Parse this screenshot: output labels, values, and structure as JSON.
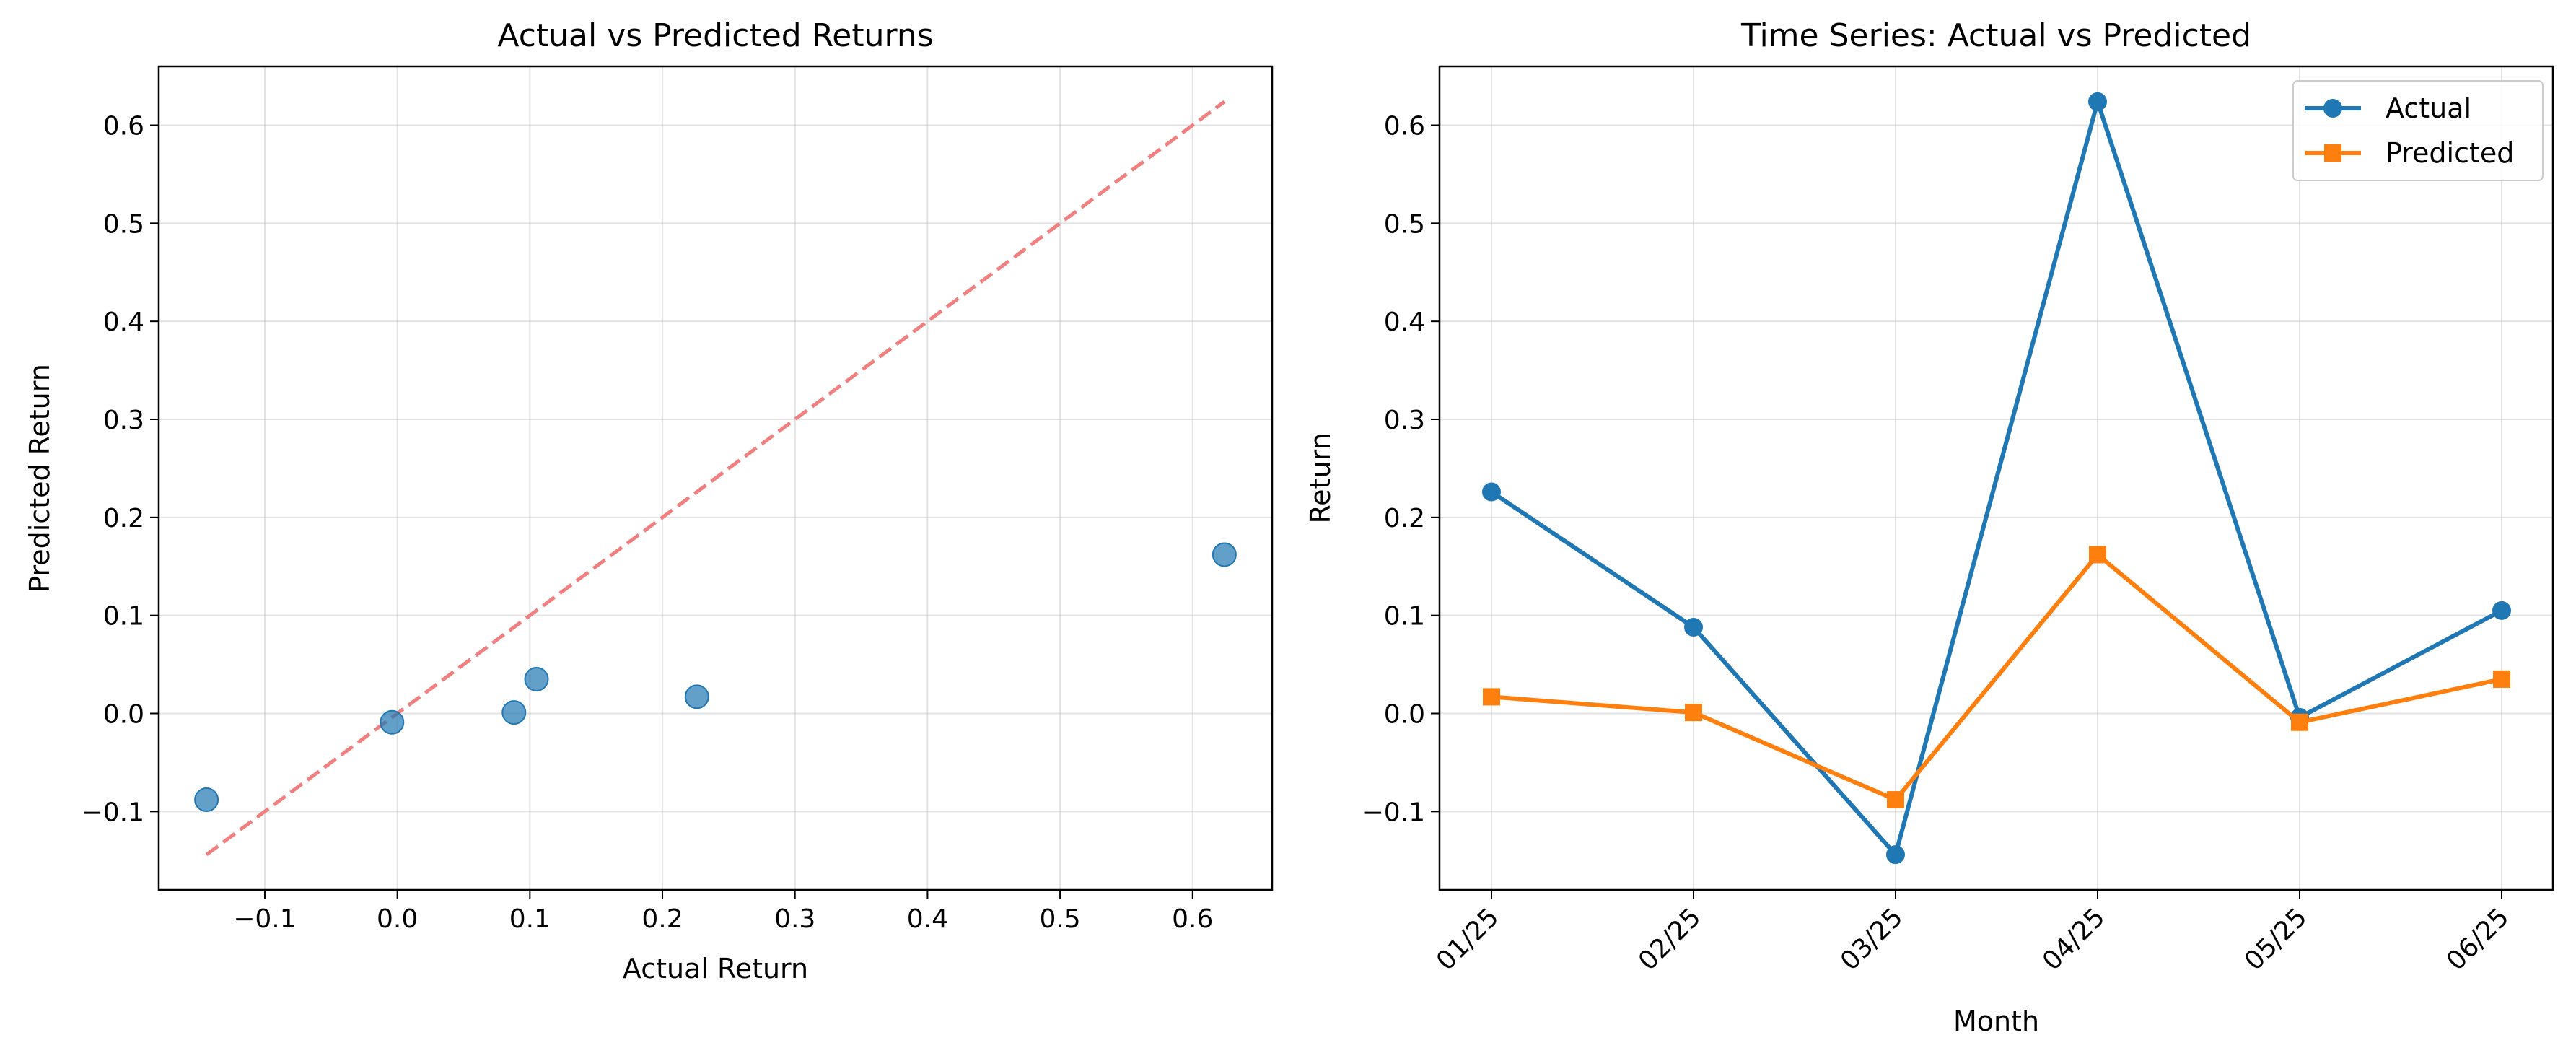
{
  "chart_data": [
    {
      "type": "scatter",
      "title": "Actual vs Predicted Returns",
      "xlabel": "Actual Return",
      "ylabel": "Predicted Return",
      "xlim": [
        -0.18,
        0.66
      ],
      "ylim": [
        -0.18,
        0.66
      ],
      "xticks": [
        "−0.1",
        "0.0",
        "0.1",
        "0.2",
        "0.3",
        "0.4",
        "0.5",
        "0.6"
      ],
      "yticks": [
        "−0.1",
        "0.0",
        "0.1",
        "0.2",
        "0.3",
        "0.4",
        "0.5",
        "0.6"
      ],
      "grid": true,
      "points": [
        {
          "x": 0.226,
          "y": 0.017
        },
        {
          "x": 0.088,
          "y": 0.001
        },
        {
          "x": -0.144,
          "y": -0.088
        },
        {
          "x": 0.624,
          "y": 0.162
        },
        {
          "x": -0.004,
          "y": -0.009
        },
        {
          "x": 0.105,
          "y": 0.035
        }
      ],
      "reference_line": {
        "x": [
          -0.144,
          0.624
        ],
        "y": [
          -0.144,
          0.624
        ],
        "style": "dashed"
      },
      "colors": {
        "points": "#1f77b4",
        "reference_line": "#f08080"
      }
    },
    {
      "type": "line",
      "title": "Time Series: Actual vs Predicted",
      "xlabel": "Month",
      "ylabel": "Return",
      "categories": [
        "01/25",
        "02/25",
        "03/25",
        "04/25",
        "05/25",
        "06/25"
      ],
      "ylim": [
        -0.18,
        0.66
      ],
      "yticks": [
        "−0.1",
        "0.0",
        "0.1",
        "0.2",
        "0.3",
        "0.4",
        "0.5",
        "0.6"
      ],
      "grid": true,
      "legend_position": "top-right",
      "series": [
        {
          "name": "Actual",
          "values": [
            0.226,
            0.088,
            -0.144,
            0.624,
            -0.004,
            0.105
          ],
          "color": "#1f77b4",
          "marker": "circle"
        },
        {
          "name": "Predicted",
          "values": [
            0.017,
            0.001,
            -0.088,
            0.162,
            -0.009,
            0.035
          ],
          "color": "#ff7f0e",
          "marker": "square"
        }
      ]
    }
  ]
}
